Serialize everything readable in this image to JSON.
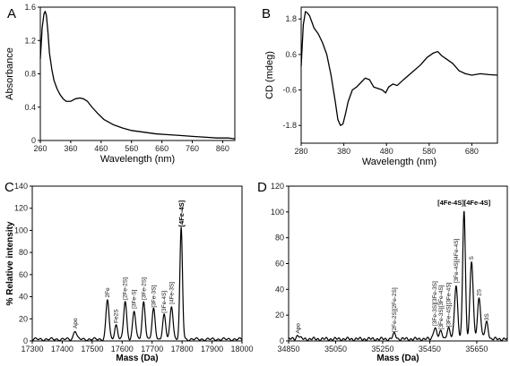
{
  "chart_data": [
    {
      "panel": "A",
      "type": "line",
      "xlabel": "Wavelength (nm)",
      "ylabel": "Absorbance",
      "xlim": [
        260,
        900
      ],
      "ylim": [
        0,
        1.6
      ],
      "xticks": [
        260,
        360,
        460,
        560,
        660,
        760,
        860
      ],
      "yticks": [
        "0",
        "0.4",
        "0.8",
        "1.2",
        "1.6"
      ],
      "series": [
        {
          "x": [
            260,
            266,
            272,
            276,
            280,
            285,
            290,
            298,
            305,
            315,
            325,
            335,
            345,
            360,
            375,
            390,
            402,
            415,
            430,
            450,
            470,
            500,
            530,
            560,
            600,
            640,
            680,
            720,
            760,
            800,
            840,
            880,
            900
          ],
          "values": [
            0.98,
            1.35,
            1.52,
            1.55,
            1.5,
            1.3,
            1.05,
            0.85,
            0.72,
            0.62,
            0.55,
            0.5,
            0.47,
            0.47,
            0.5,
            0.51,
            0.5,
            0.47,
            0.4,
            0.32,
            0.25,
            0.19,
            0.15,
            0.12,
            0.1,
            0.08,
            0.07,
            0.06,
            0.05,
            0.04,
            0.03,
            0.03,
            0.02
          ]
        }
      ]
    },
    {
      "panel": "B",
      "type": "line",
      "xlabel": "Wavelength (nm)",
      "ylabel": "CD (mdeg)",
      "xlim": [
        280,
        740
      ],
      "ylim": [
        -2.4,
        2.2
      ],
      "xticks": [
        280,
        380,
        480,
        580,
        680
      ],
      "yticks": [
        "-1.8",
        "-0.6",
        "0.6",
        "1.8"
      ],
      "series": [
        {
          "x": [
            280,
            285,
            290,
            295,
            300,
            305,
            310,
            320,
            330,
            340,
            350,
            360,
            366,
            372,
            378,
            384,
            390,
            400,
            410,
            420,
            430,
            440,
            450,
            460,
            470,
            478,
            485,
            495,
            505,
            520,
            540,
            560,
            575,
            590,
            600,
            610,
            620,
            635,
            650,
            665,
            680,
            700,
            720,
            740
          ],
          "values": [
            0.2,
            1.6,
            2.05,
            2.0,
            1.9,
            1.7,
            1.5,
            1.3,
            1.0,
            0.6,
            -0.1,
            -1.0,
            -1.6,
            -1.8,
            -1.75,
            -1.4,
            -1.0,
            -0.6,
            -0.5,
            -0.35,
            -0.2,
            -0.25,
            -0.5,
            -0.55,
            -0.6,
            -0.7,
            -0.5,
            -0.4,
            -0.45,
            -0.25,
            0.0,
            0.25,
            0.5,
            0.65,
            0.7,
            0.55,
            0.45,
            0.3,
            0.05,
            -0.05,
            -0.1,
            -0.05,
            -0.08,
            -0.1
          ]
        }
      ]
    },
    {
      "panel": "C",
      "type": "line",
      "xlabel": "Mass (Da)",
      "ylabel": "% Relative intensity",
      "xlim": [
        17300,
        18000
      ],
      "ylim": [
        0,
        140
      ],
      "xticks": [
        17300,
        17400,
        17500,
        17600,
        17700,
        17800,
        17900,
        18000
      ],
      "yticks": [
        "0",
        "20",
        "40",
        "60",
        "80",
        "100",
        "120",
        "140"
      ],
      "peaks": [
        {
          "x": 17443,
          "y": 8,
          "label": "Apo"
        },
        {
          "x": 17551,
          "y": 36,
          "label": "2Fe"
        },
        {
          "x": 17580,
          "y": 13,
          "label": "Fe2S"
        },
        {
          "x": 17610,
          "y": 34,
          "label": "[2Fe-2S]"
        },
        {
          "x": 17640,
          "y": 26,
          "label": "[3Fe-S]"
        },
        {
          "x": 17672,
          "y": 34,
          "label": "[3Fe-2S]"
        },
        {
          "x": 17705,
          "y": 27,
          "label": "[3Fe-3S]"
        },
        {
          "x": 17740,
          "y": 22,
          "label": "[3Fe-4S]"
        },
        {
          "x": 17765,
          "y": 30,
          "label": "[4Fe-3S]"
        },
        {
          "x": 17797,
          "y": 100,
          "label": "[4Fe-4S]",
          "bold": true
        }
      ]
    },
    {
      "panel": "D",
      "type": "line",
      "xlabel": "Mass (Da)",
      "xlim": [
        34850,
        35780
      ],
      "ylim": [
        0,
        120
      ],
      "xticks": [
        34850,
        35050,
        35250,
        35450,
        35650
      ],
      "yticks": [
        "0",
        "20",
        "40",
        "60",
        "80",
        "100",
        "120"
      ],
      "peaks": [
        {
          "x": 34890,
          "y": 3,
          "label": "Apo"
        },
        {
          "x": 35300,
          "y": 4,
          "label": "[2Fe-2S][2Fe-2S]"
        },
        {
          "x": 35472,
          "y": 9,
          "label": "[3Fe-3S][3Fe-3S]"
        },
        {
          "x": 35498,
          "y": 6,
          "label": "[3Fe-3S][3Fe-4S]"
        },
        {
          "x": 35530,
          "y": 8,
          "label": "[3Fe-4S][3Fe-4S]"
        },
        {
          "x": 35562,
          "y": 42,
          "label": "[3Fe-4S][4Fe-4S]"
        },
        {
          "x": 35596,
          "y": 100,
          "label": "[4Fe-4S][4Fe-4S]",
          "bold": true
        },
        {
          "x": 35628,
          "y": 60,
          "label": "S"
        },
        {
          "x": 35660,
          "y": 32,
          "label": "2S"
        },
        {
          "x": 35692,
          "y": 13,
          "label": "3S"
        }
      ]
    }
  ]
}
